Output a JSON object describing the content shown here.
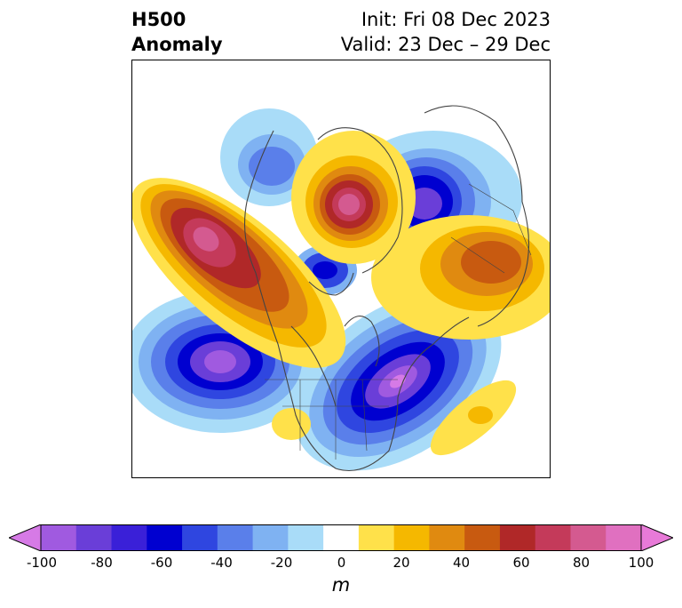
{
  "title": {
    "left_line1": "H500",
    "left_line2": "Anomaly",
    "right_line1": "Init: Fri 08 Dec 2023",
    "right_line2": "Valid: 23 Dec – 29 Dec"
  },
  "colorbar": {
    "ticks": [
      "-100",
      "-80",
      "-60",
      "-40",
      "-20",
      "0",
      "20",
      "40",
      "60",
      "80",
      "100"
    ],
    "unit": "m",
    "colors": [
      "#d67ae6",
      "#a05ae0",
      "#6a3ed8",
      "#3a20d8",
      "#0000d0",
      "#2f46e0",
      "#5a7fea",
      "#7fb2f2",
      "#a9dcf8",
      "#ffffff",
      "#ffe14a",
      "#f5b800",
      "#e08a10",
      "#c85a10",
      "#b02828",
      "#c43a5a",
      "#d45a90",
      "#e070c0",
      "#e87ad8"
    ]
  },
  "map_features": {
    "anomaly_colors": {
      "neg_far": "#a9dcf8",
      "neg_mid": "#5a7fea",
      "neg_core": "#0000d0",
      "neg_extreme": "#8a50d8",
      "pos_near": "#ffe14a",
      "pos_mid": "#f5b800",
      "pos_strong": "#c85a10",
      "pos_core": "#b02828",
      "pos_extreme": "#d45a90"
    }
  }
}
